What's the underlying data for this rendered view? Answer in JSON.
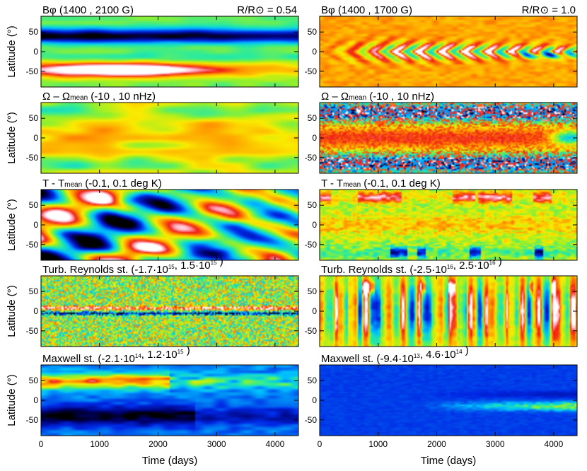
{
  "chart_data": {
    "type": "heatmap",
    "layout": {
      "rows": 5,
      "columns": 2
    },
    "x_axis": {
      "label": "Time (days)",
      "range": [
        0,
        4400
      ],
      "ticks": [
        0,
        1000,
        2000,
        3000,
        4000
      ]
    },
    "y_axis": {
      "label": "Latitude (°)",
      "range": [
        -90,
        90
      ],
      "ticks": [
        50,
        0,
        -50
      ]
    },
    "panels": [
      {
        "title": "Bφ (1400 , 2100 G)",
        "annotation": "R/R⊙ = 0.54",
        "pattern": "bphi-deep",
        "title_parts": [
          {
            "t": "Bφ (1400 , 2100 G)"
          }
        ]
      },
      {
        "title": "Bφ (1400 , 1700 G)",
        "annotation": "R/R⊙ = 1.0",
        "pattern": "bphi-surface",
        "title_parts": [
          {
            "t": "Bφ (1400 , 1700 G)"
          }
        ]
      },
      {
        "title": "Ω – Ωmean (-10 , 10 nHz)",
        "pattern": "omega-deep",
        "title_parts": [
          {
            "t": "Ω – Ω"
          },
          {
            "t": "mean",
            "sub": true
          },
          {
            "t": " (-10 , 10 nHz)"
          }
        ]
      },
      {
        "title": "Ω – Ωmean (-10 , 10 nHz)",
        "pattern": "omega-surface",
        "title_parts": [
          {
            "t": "Ω – Ω"
          },
          {
            "t": "mean",
            "sub": true
          },
          {
            "t": " (-10 , 10 nHz)"
          }
        ]
      },
      {
        "title": "T - Tmean (-0.1, 0.1 deg K)",
        "pattern": "temp-deep",
        "title_parts": [
          {
            "t": "T - T"
          },
          {
            "t": "mean",
            "sub": true
          },
          {
            "t": " (-0.1, 0.1 deg K)"
          }
        ]
      },
      {
        "title": "T - Tmean (-0.1, 0.1 deg K)",
        "pattern": "temp-surface",
        "title_parts": [
          {
            "t": "T - T"
          },
          {
            "t": "mean",
            "sub": true
          },
          {
            "t": " (-0.1, 0.1 deg K)"
          }
        ]
      },
      {
        "title": "Turb. Reynolds st. (-1.7·10^15, 1.5·10^15 )",
        "pattern": "reynolds-deep",
        "title_parts": [
          {
            "t": "Turb. Reynolds st. (-1.7·10"
          },
          {
            "t": "15",
            "sup": true
          },
          {
            "t": ", 1.5·10"
          },
          {
            "t": "15",
            "sup": true
          },
          {
            "t": " )"
          }
        ]
      },
      {
        "title": "Turb. Reynolds st. (-2.5·10^16, 2.5·10^16 )",
        "pattern": "reynolds-surface",
        "title_parts": [
          {
            "t": "Turb. Reynolds st. (-2.5·10"
          },
          {
            "t": "16",
            "sup": true
          },
          {
            "t": ", 2.5·10"
          },
          {
            "t": "16",
            "sup": true
          },
          {
            "t": " )"
          }
        ]
      },
      {
        "title": "Maxwell st. (-2.1·10^14, 1.2·10^15 )",
        "pattern": "maxwell-deep",
        "title_parts": [
          {
            "t": "Maxwell st. (-2.1·10"
          },
          {
            "t": "14",
            "sup": true
          },
          {
            "t": ", 1.2·10"
          },
          {
            "t": "15",
            "sup": true
          },
          {
            "t": " )"
          }
        ]
      },
      {
        "title": "Maxwell st. (-9.4·10^13, 4.6·10^14 )",
        "pattern": "maxwell-surface",
        "title_parts": [
          {
            "t": "Maxwell st. (-9.4·10"
          },
          {
            "t": "13",
            "sup": true
          },
          {
            "t": ", 4.6·10"
          },
          {
            "t": "14",
            "sup": true
          },
          {
            "t": " )"
          }
        ]
      }
    ]
  }
}
